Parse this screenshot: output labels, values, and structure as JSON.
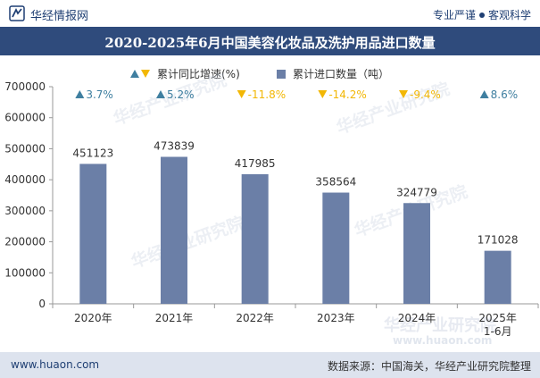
{
  "header": {
    "brand": "华经情报网",
    "slogan_left": "专业严谨",
    "slogan_right": "客观科学"
  },
  "title": "2020-2025年6月中国美容化妆品及洗护用品进口数量",
  "legend": {
    "growth": "累计同比增速(%)",
    "volume": "累计进口数量（吨）"
  },
  "footer": {
    "website": "www.huaon.com",
    "source": "数据来源：中国海关，华经产业研究院整理"
  },
  "watermark": {
    "text": "华经产业研究院",
    "url": "www.huaon.com"
  },
  "colors": {
    "bar": "#6b7fa7",
    "up": "#3f7fa0",
    "down": "#f2b705",
    "title_bg": "#2f4b7c"
  },
  "chart_data": {
    "type": "bar",
    "title": "2020-2025年6月中国美容化妆品及洗护用品进口数量",
    "categories": [
      "2020年",
      "2021年",
      "2022年",
      "2023年",
      "2024年",
      "2025年\n1-6月"
    ],
    "series": [
      {
        "name": "累计进口数量（吨）",
        "values": [
          451123,
          473839,
          417985,
          358564,
          324779,
          171028
        ]
      },
      {
        "name": "累计同比增速(%)",
        "values": [
          3.7,
          5.2,
          -11.8,
          -14.2,
          -9.4,
          8.6
        ]
      }
    ],
    "value_labels": [
      "451123",
      "473839",
      "417985",
      "358564",
      "324779",
      "171028"
    ],
    "growth_labels": [
      "3.7%",
      "5.2%",
      "-11.8%",
      "-14.2%",
      "-9.4%",
      "8.6%"
    ],
    "yticks": [
      0,
      100000,
      200000,
      300000,
      400000,
      500000,
      600000,
      700000
    ],
    "ylim": [
      0,
      700000
    ],
    "legend_position": "top-center",
    "grid": false
  }
}
